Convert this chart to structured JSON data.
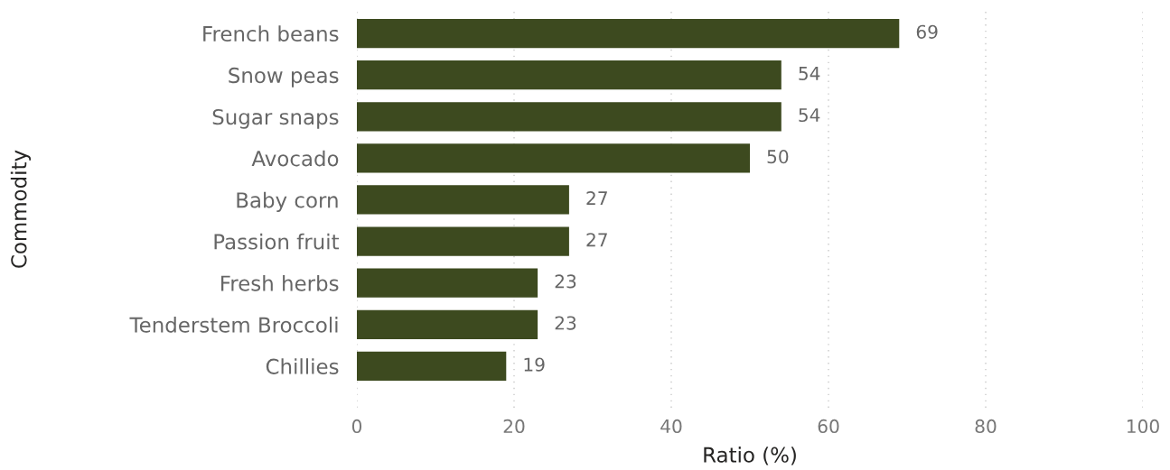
{
  "chart_data": {
    "type": "bar",
    "orientation": "horizontal",
    "categories": [
      "French beans",
      "Snow peas",
      "Sugar snaps",
      "Avocado",
      "Baby corn",
      "Passion fruit",
      "Fresh herbs",
      "Tenderstem Broccoli",
      "Chillies"
    ],
    "values": [
      69,
      54,
      54,
      50,
      27,
      27,
      23,
      23,
      19
    ],
    "color": "#3d4a1f",
    "xlim": [
      0,
      100
    ],
    "xticks": [
      0,
      20,
      40,
      60,
      80,
      100
    ],
    "xlabel": "Ratio (%)",
    "ylabel": "Commodity",
    "grid": "x",
    "data_labels": true,
    "legend": false
  }
}
